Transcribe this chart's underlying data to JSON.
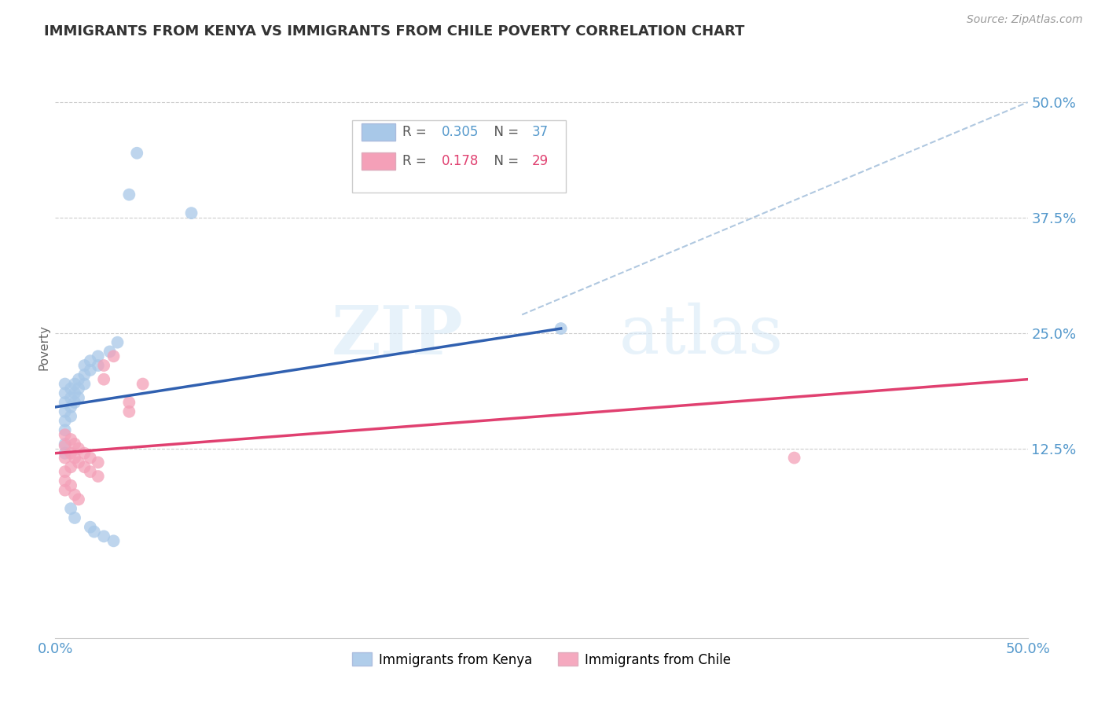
{
  "title": "IMMIGRANTS FROM KENYA VS IMMIGRANTS FROM CHILE POVERTY CORRELATION CHART",
  "source": "Source: ZipAtlas.com",
  "ylabel": "Poverty",
  "xlim": [
    0,
    0.5
  ],
  "ylim": [
    -0.08,
    0.55
  ],
  "ytick_labels": [
    "12.5%",
    "25.0%",
    "37.5%",
    "50.0%"
  ],
  "ytick_values": [
    0.125,
    0.25,
    0.375,
    0.5
  ],
  "xtick_values": [
    0.0,
    0.125,
    0.25,
    0.375,
    0.5
  ],
  "xtick_labels": [
    "0.0%",
    "",
    "",
    "",
    "50.0%"
  ],
  "kenya_R": 0.305,
  "kenya_N": 37,
  "chile_R": 0.178,
  "chile_N": 29,
  "kenya_color": "#a8c8e8",
  "chile_color": "#f4a0b8",
  "kenya_line_color": "#3060b0",
  "chile_line_color": "#e04070",
  "diagonal_color": "#b0c8e0",
  "kenya_points": [
    [
      0.005,
      0.195
    ],
    [
      0.005,
      0.185
    ],
    [
      0.005,
      0.175
    ],
    [
      0.005,
      0.165
    ],
    [
      0.005,
      0.155
    ],
    [
      0.005,
      0.145
    ],
    [
      0.005,
      0.13
    ],
    [
      0.005,
      0.12
    ],
    [
      0.008,
      0.19
    ],
    [
      0.008,
      0.18
    ],
    [
      0.008,
      0.17
    ],
    [
      0.008,
      0.16
    ],
    [
      0.01,
      0.195
    ],
    [
      0.01,
      0.185
    ],
    [
      0.01,
      0.175
    ],
    [
      0.012,
      0.2
    ],
    [
      0.012,
      0.19
    ],
    [
      0.012,
      0.18
    ],
    [
      0.015,
      0.215
    ],
    [
      0.015,
      0.205
    ],
    [
      0.015,
      0.195
    ],
    [
      0.018,
      0.22
    ],
    [
      0.018,
      0.21
    ],
    [
      0.022,
      0.225
    ],
    [
      0.022,
      0.215
    ],
    [
      0.028,
      0.23
    ],
    [
      0.032,
      0.24
    ],
    [
      0.038,
      0.4
    ],
    [
      0.042,
      0.445
    ],
    [
      0.07,
      0.38
    ],
    [
      0.008,
      0.06
    ],
    [
      0.01,
      0.05
    ],
    [
      0.018,
      0.04
    ],
    [
      0.02,
      0.035
    ],
    [
      0.025,
      0.03
    ],
    [
      0.03,
      0.025
    ],
    [
      0.26,
      0.255
    ]
  ],
  "chile_points": [
    [
      0.005,
      0.14
    ],
    [
      0.005,
      0.128
    ],
    [
      0.005,
      0.115
    ],
    [
      0.005,
      0.1
    ],
    [
      0.008,
      0.135
    ],
    [
      0.008,
      0.12
    ],
    [
      0.008,
      0.105
    ],
    [
      0.01,
      0.13
    ],
    [
      0.01,
      0.115
    ],
    [
      0.012,
      0.125
    ],
    [
      0.012,
      0.11
    ],
    [
      0.015,
      0.12
    ],
    [
      0.015,
      0.105
    ],
    [
      0.018,
      0.115
    ],
    [
      0.018,
      0.1
    ],
    [
      0.022,
      0.11
    ],
    [
      0.022,
      0.095
    ],
    [
      0.025,
      0.2
    ],
    [
      0.025,
      0.215
    ],
    [
      0.03,
      0.225
    ],
    [
      0.038,
      0.165
    ],
    [
      0.038,
      0.175
    ],
    [
      0.045,
      0.195
    ],
    [
      0.005,
      0.09
    ],
    [
      0.005,
      0.08
    ],
    [
      0.008,
      0.085
    ],
    [
      0.01,
      0.075
    ],
    [
      0.012,
      0.07
    ],
    [
      0.38,
      0.115
    ]
  ],
  "kenya_line": [
    [
      0.0,
      0.17
    ],
    [
      0.26,
      0.255
    ]
  ],
  "chile_line": [
    [
      0.0,
      0.12
    ],
    [
      0.5,
      0.2
    ]
  ],
  "diagonal_line": [
    [
      0.24,
      0.27
    ],
    [
      0.5,
      0.5
    ]
  ],
  "watermark_zip": "ZIP",
  "watermark_atlas": "atlas",
  "background_color": "#ffffff",
  "title_fontsize": 13,
  "tick_label_color": "#5599cc",
  "grid_color": "#cccccc"
}
